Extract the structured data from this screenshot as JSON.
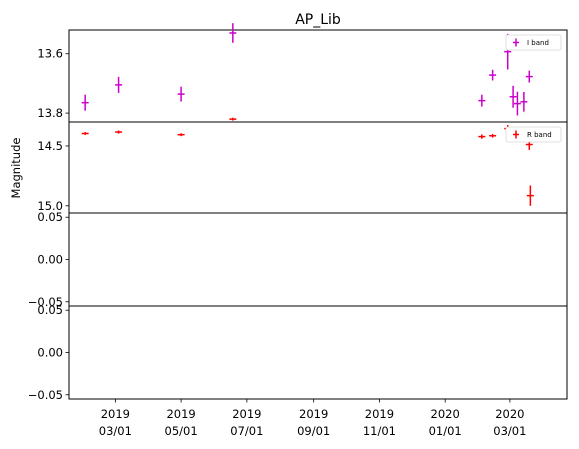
{
  "chart_data": {
    "type": "scatter",
    "title": "AP_Lib",
    "ylabel": "Magnitude",
    "x_ticks": [
      {
        "date": "2019-03-01",
        "line1": "2019",
        "line2": "03/01"
      },
      {
        "date": "2019-05-01",
        "line1": "2019",
        "line2": "05/01"
      },
      {
        "date": "2019-07-01",
        "line1": "2019",
        "line2": "07/01"
      },
      {
        "date": "2019-09-01",
        "line1": "2019",
        "line2": "09/01"
      },
      {
        "date": "2019-11-01",
        "line1": "2019",
        "line2": "11/01"
      },
      {
        "date": "2020-01-01",
        "line1": "2020",
        "line2": "01/01"
      },
      {
        "date": "2020-03-01",
        "line1": "2020",
        "line2": "03/01"
      }
    ],
    "xlim": [
      "2019-01-17",
      "2020-04-23"
    ],
    "panels": [
      {
        "name": "I band",
        "color": "#cc00cc",
        "ylim": [
          13.83,
          13.52
        ],
        "inverted": true,
        "yticks": [
          {
            "v": 13.6,
            "label": "13.6"
          },
          {
            "v": 13.8,
            "label": "13.8"
          }
        ],
        "legend": "upper right",
        "points": [
          {
            "x": "2019-02-01",
            "y": 13.765,
            "err": 0.027
          },
          {
            "x": "2019-03-04",
            "y": 13.705,
            "err": 0.027
          },
          {
            "x": "2019-05-01",
            "y": 13.736,
            "err": 0.025
          },
          {
            "x": "2019-06-18",
            "y": 13.53,
            "err": 0.033
          },
          {
            "x": "2020-02-04",
            "y": 13.758,
            "err": 0.02
          },
          {
            "x": "2020-02-14",
            "y": 13.672,
            "err": 0.018
          },
          {
            "x": "2020-02-28",
            "y": 13.593,
            "err": 0.06
          },
          {
            "x": "2020-03-04",
            "y": 13.745,
            "err": 0.037
          },
          {
            "x": "2020-03-08",
            "y": 13.768,
            "err": 0.04
          },
          {
            "x": "2020-03-14",
            "y": 13.762,
            "err": 0.033
          },
          {
            "x": "2020-03-19",
            "y": 13.677,
            "err": 0.02
          }
        ]
      },
      {
        "name": "R band",
        "color": "#ff0000",
        "ylim": [
          15.06,
          14.3
        ],
        "inverted": true,
        "yticks": [
          {
            "v": 14.5,
            "label": "14.5"
          },
          {
            "v": 15.0,
            "label": "15.0"
          }
        ],
        "legend": "upper right",
        "points": [
          {
            "x": "2019-02-01",
            "y": 14.396,
            "err": 0.012
          },
          {
            "x": "2019-03-04",
            "y": 14.384,
            "err": 0.013
          },
          {
            "x": "2019-05-01",
            "y": 14.406,
            "err": 0.012
          },
          {
            "x": "2019-06-18",
            "y": 14.276,
            "err": 0.012
          },
          {
            "x": "2020-02-04",
            "y": 14.422,
            "err": 0.018
          },
          {
            "x": "2020-02-14",
            "y": 14.415,
            "err": 0.015
          },
          {
            "x": "2020-02-28",
            "y": 14.355,
            "err": 0.03
          },
          {
            "x": "2020-03-19",
            "y": 14.488,
            "err": 0.045
          },
          {
            "x": "2020-03-20",
            "y": 14.915,
            "err": 0.085
          }
        ]
      },
      {
        "name": "",
        "color": "#000000",
        "ylim": [
          -0.055,
          0.055
        ],
        "inverted": false,
        "yticks": [
          {
            "v": 0.05,
            "label": "0.05"
          },
          {
            "v": 0.0,
            "label": "0.00"
          },
          {
            "v": -0.05,
            "label": "−0.05"
          }
        ],
        "legend": "",
        "points": []
      },
      {
        "name": "",
        "color": "#000000",
        "ylim": [
          -0.055,
          0.055
        ],
        "inverted": false,
        "yticks": [
          {
            "v": 0.05,
            "label": "0.05"
          },
          {
            "v": 0.0,
            "label": "0.00"
          },
          {
            "v": -0.05,
            "label": "−0.05"
          }
        ],
        "legend": "",
        "points": []
      }
    ]
  }
}
